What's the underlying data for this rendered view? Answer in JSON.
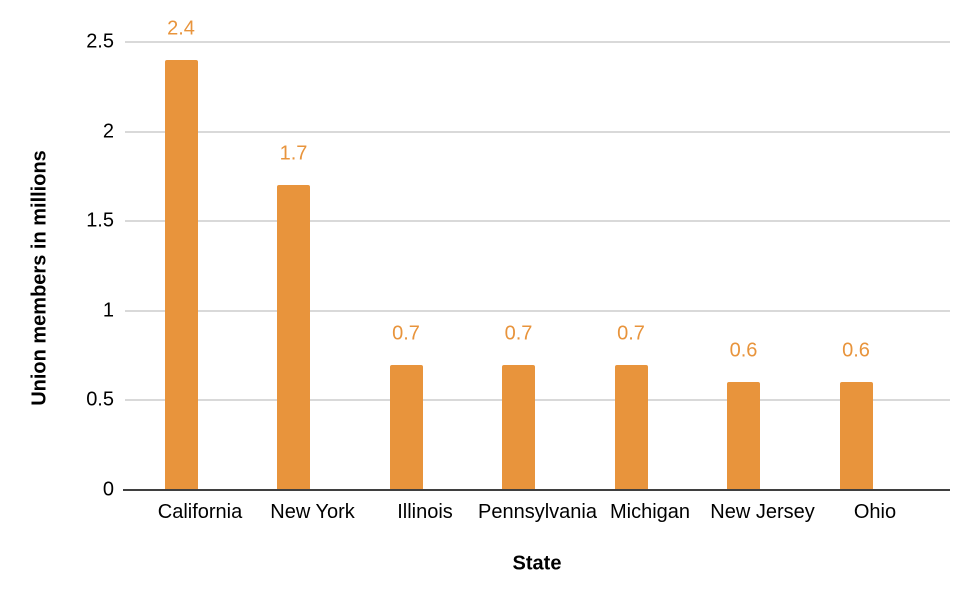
{
  "chart_data": {
    "type": "bar",
    "categories": [
      "California",
      "New York",
      "Illinois",
      "Pennsylvania",
      "Michigan",
      "New Jersey",
      "Ohio"
    ],
    "values": [
      2.4,
      1.7,
      0.7,
      0.7,
      0.7,
      0.6,
      0.6
    ],
    "bar_labels": [
      "2.4",
      "1.7",
      "0.7",
      "0.7",
      "0.7",
      "0.6",
      "0.6"
    ],
    "title": "",
    "xlabel": "State",
    "ylabel": "Union members in millions",
    "y_ticks": [
      0,
      0.5,
      1,
      1.5,
      2,
      2.5
    ],
    "y_tick_labels": [
      "0",
      "0.5",
      "1",
      "1.5",
      "2",
      "2.5"
    ],
    "ylim": [
      0,
      2.5
    ],
    "grid": true,
    "legend": "none",
    "colors": {
      "bar": "#E8943C",
      "data_label": "#E8943C",
      "gridline": "#D9D9D9",
      "axis_line": "#3F3F3F",
      "text": "#000000",
      "background": "#FFFFFF"
    }
  }
}
